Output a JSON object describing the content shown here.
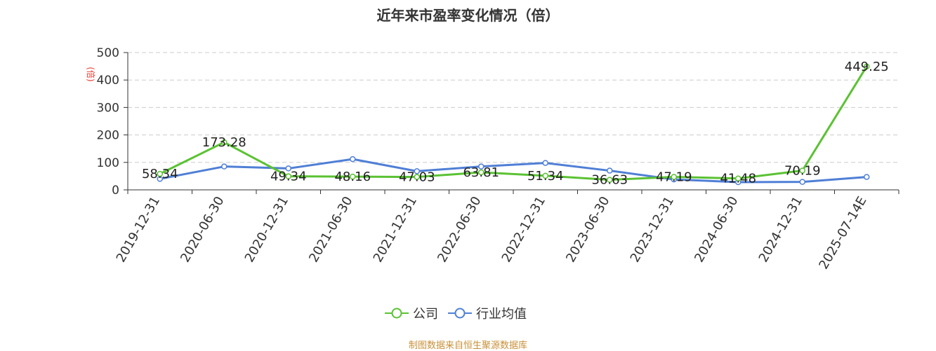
{
  "title": "近年来市盈率变化情况（倍）",
  "source_note": "制图数据来自恒生聚源数据库",
  "chart_data": {
    "type": "line",
    "categories": [
      "2019-12-31",
      "2020-06-30",
      "2020-12-31",
      "2021-06-30",
      "2021-12-31",
      "2022-06-30",
      "2022-12-31",
      "2023-06-30",
      "2023-12-31",
      "2024-06-30",
      "2024-12-31",
      "2025-07-14E"
    ],
    "ylabel": "(倍)",
    "ylim": [
      0,
      500
    ],
    "yticks": [
      0,
      100,
      200,
      300,
      400,
      500
    ],
    "grid": true,
    "legend_position": "bottom",
    "series": [
      {
        "name": "公司",
        "color": "#5ac232",
        "values": [
          58.34,
          173.28,
          49.34,
          48.16,
          47.03,
          63.81,
          51.34,
          36.63,
          47.19,
          41.48,
          70.19,
          449.25
        ],
        "labels": [
          "58.34",
          "173.28",
          "49.34",
          "48.16",
          "47.03",
          "63.81",
          "51.34",
          "36.63",
          "47.19",
          "41.48",
          "70.19",
          "449.25"
        ]
      },
      {
        "name": "行业均值",
        "color": "#4f7fd6",
        "values": [
          40,
          85,
          78,
          112,
          68,
          85,
          98,
          70,
          38,
          28,
          29,
          47
        ]
      }
    ]
  },
  "legend": {
    "company": "公司",
    "industry": "行业均值"
  }
}
